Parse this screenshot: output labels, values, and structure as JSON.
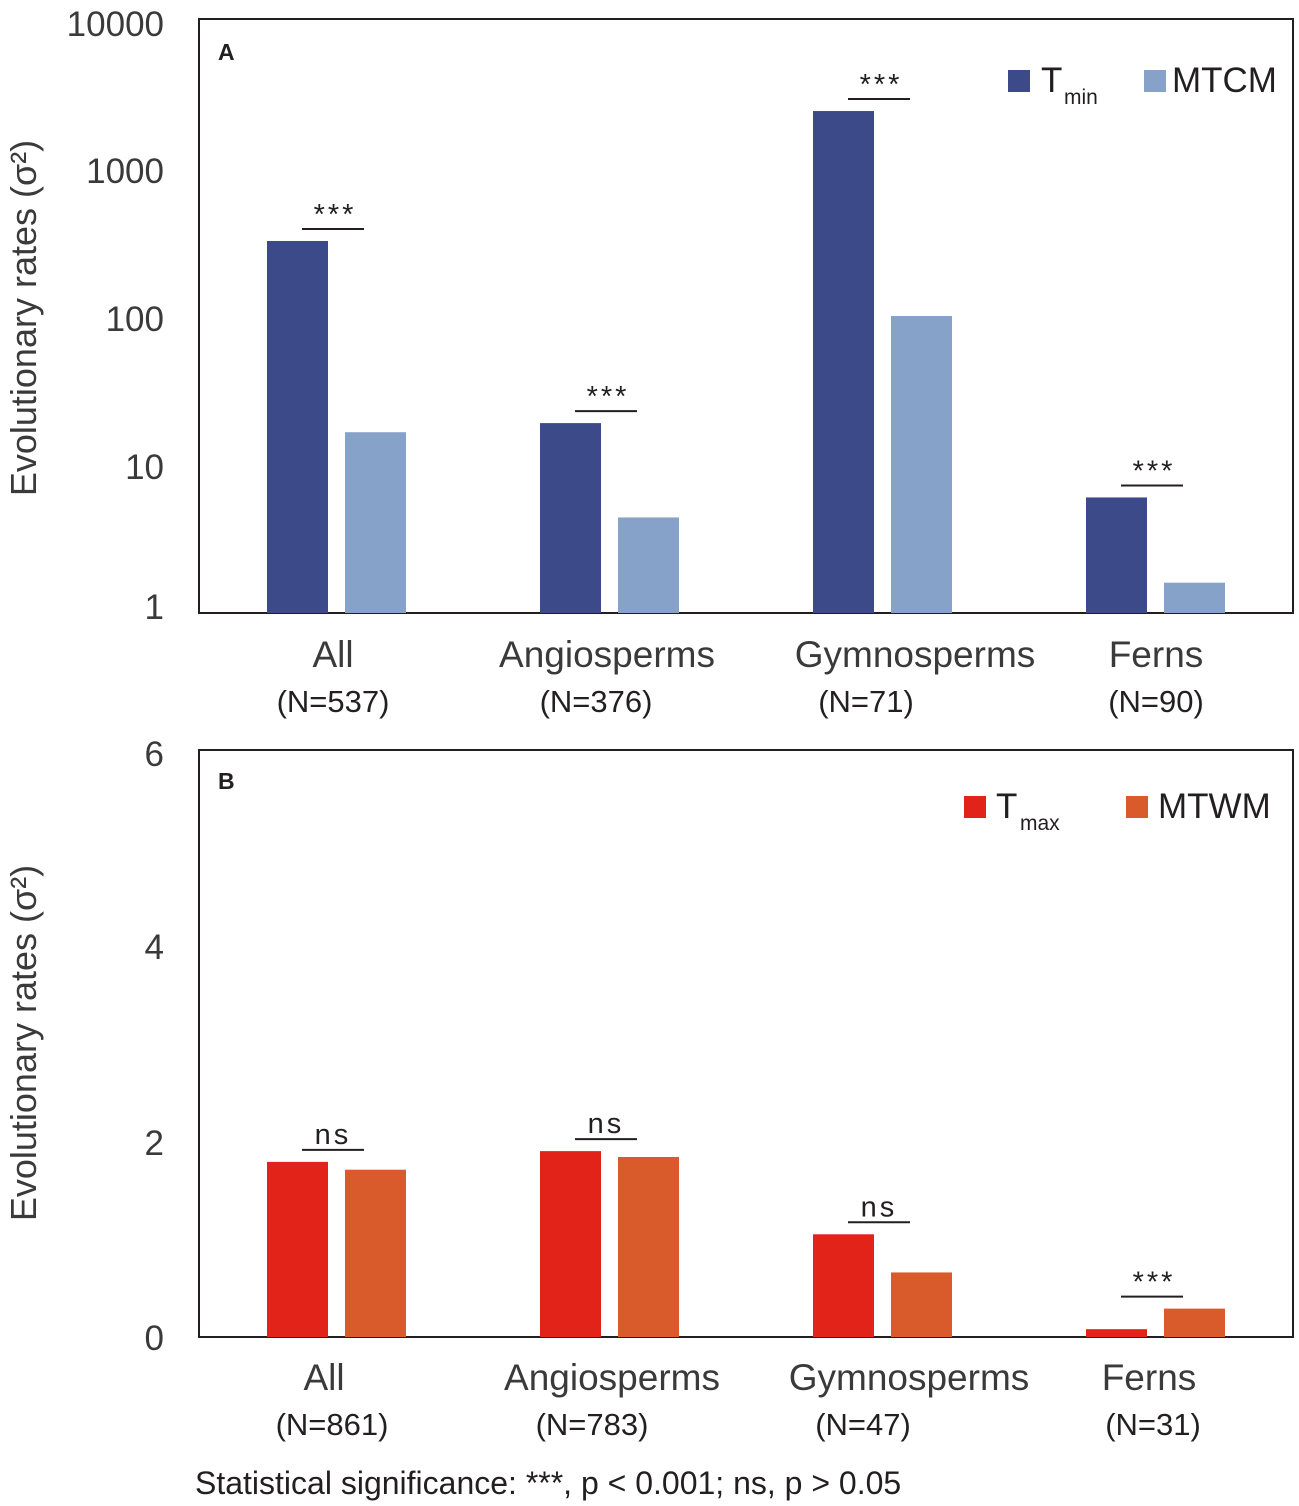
{
  "chart_data": [
    {
      "panel": "A",
      "type": "bar",
      "scale": "log",
      "ylabel": "Evolutionary rates (σ²)",
      "ylim": [
        1,
        10000
      ],
      "yticks": [
        "1",
        "10",
        "100",
        "1000",
        "10000"
      ],
      "categories": [
        "All",
        "Angiosperms",
        "Gymnosperms",
        "Ferns"
      ],
      "sample_sizes": [
        "(N=537)",
        "(N=376)",
        "(N=71)",
        "(N=90)"
      ],
      "series": [
        {
          "name": "T",
          "subscript": "min",
          "color": "#3d4a89",
          "values": [
            320,
            19,
            2400,
            6
          ]
        },
        {
          "name": "MTCM",
          "subscript": "",
          "color": "#87a2c8",
          "values": [
            16.5,
            4.4,
            100,
            1.6
          ]
        }
      ],
      "significance": [
        "***",
        "***",
        "***",
        "***"
      ],
      "significance_index": [
        0,
        1,
        2,
        3
      ]
    },
    {
      "panel": "B",
      "type": "bar",
      "scale": "linear",
      "ylabel": "Evolutionary rates (σ²)",
      "ylim": [
        0,
        6
      ],
      "yticks": [
        "0",
        "2",
        "4",
        "6"
      ],
      "categories": [
        "All",
        "Angiosperms",
        "Gymnosperms",
        "Ferns"
      ],
      "sample_sizes": [
        "(N=861)",
        "(N=783)",
        "(N=47)",
        "(N=31)"
      ],
      "series": [
        {
          "name": "T",
          "subscript": "max",
          "color": "#e2231a",
          "values": [
            1.79,
            1.9,
            1.05,
            0.08
          ]
        },
        {
          "name": "MTWM",
          "subscript": "",
          "color": "#d95a2b",
          "values": [
            1.71,
            1.84,
            0.66,
            0.29
          ]
        }
      ],
      "significance": [
        "ns",
        "ns",
        "ns",
        "***"
      ]
    }
  ],
  "footnote": "Statistical significance: ***, p < 0.001; ns, p > 0.05"
}
